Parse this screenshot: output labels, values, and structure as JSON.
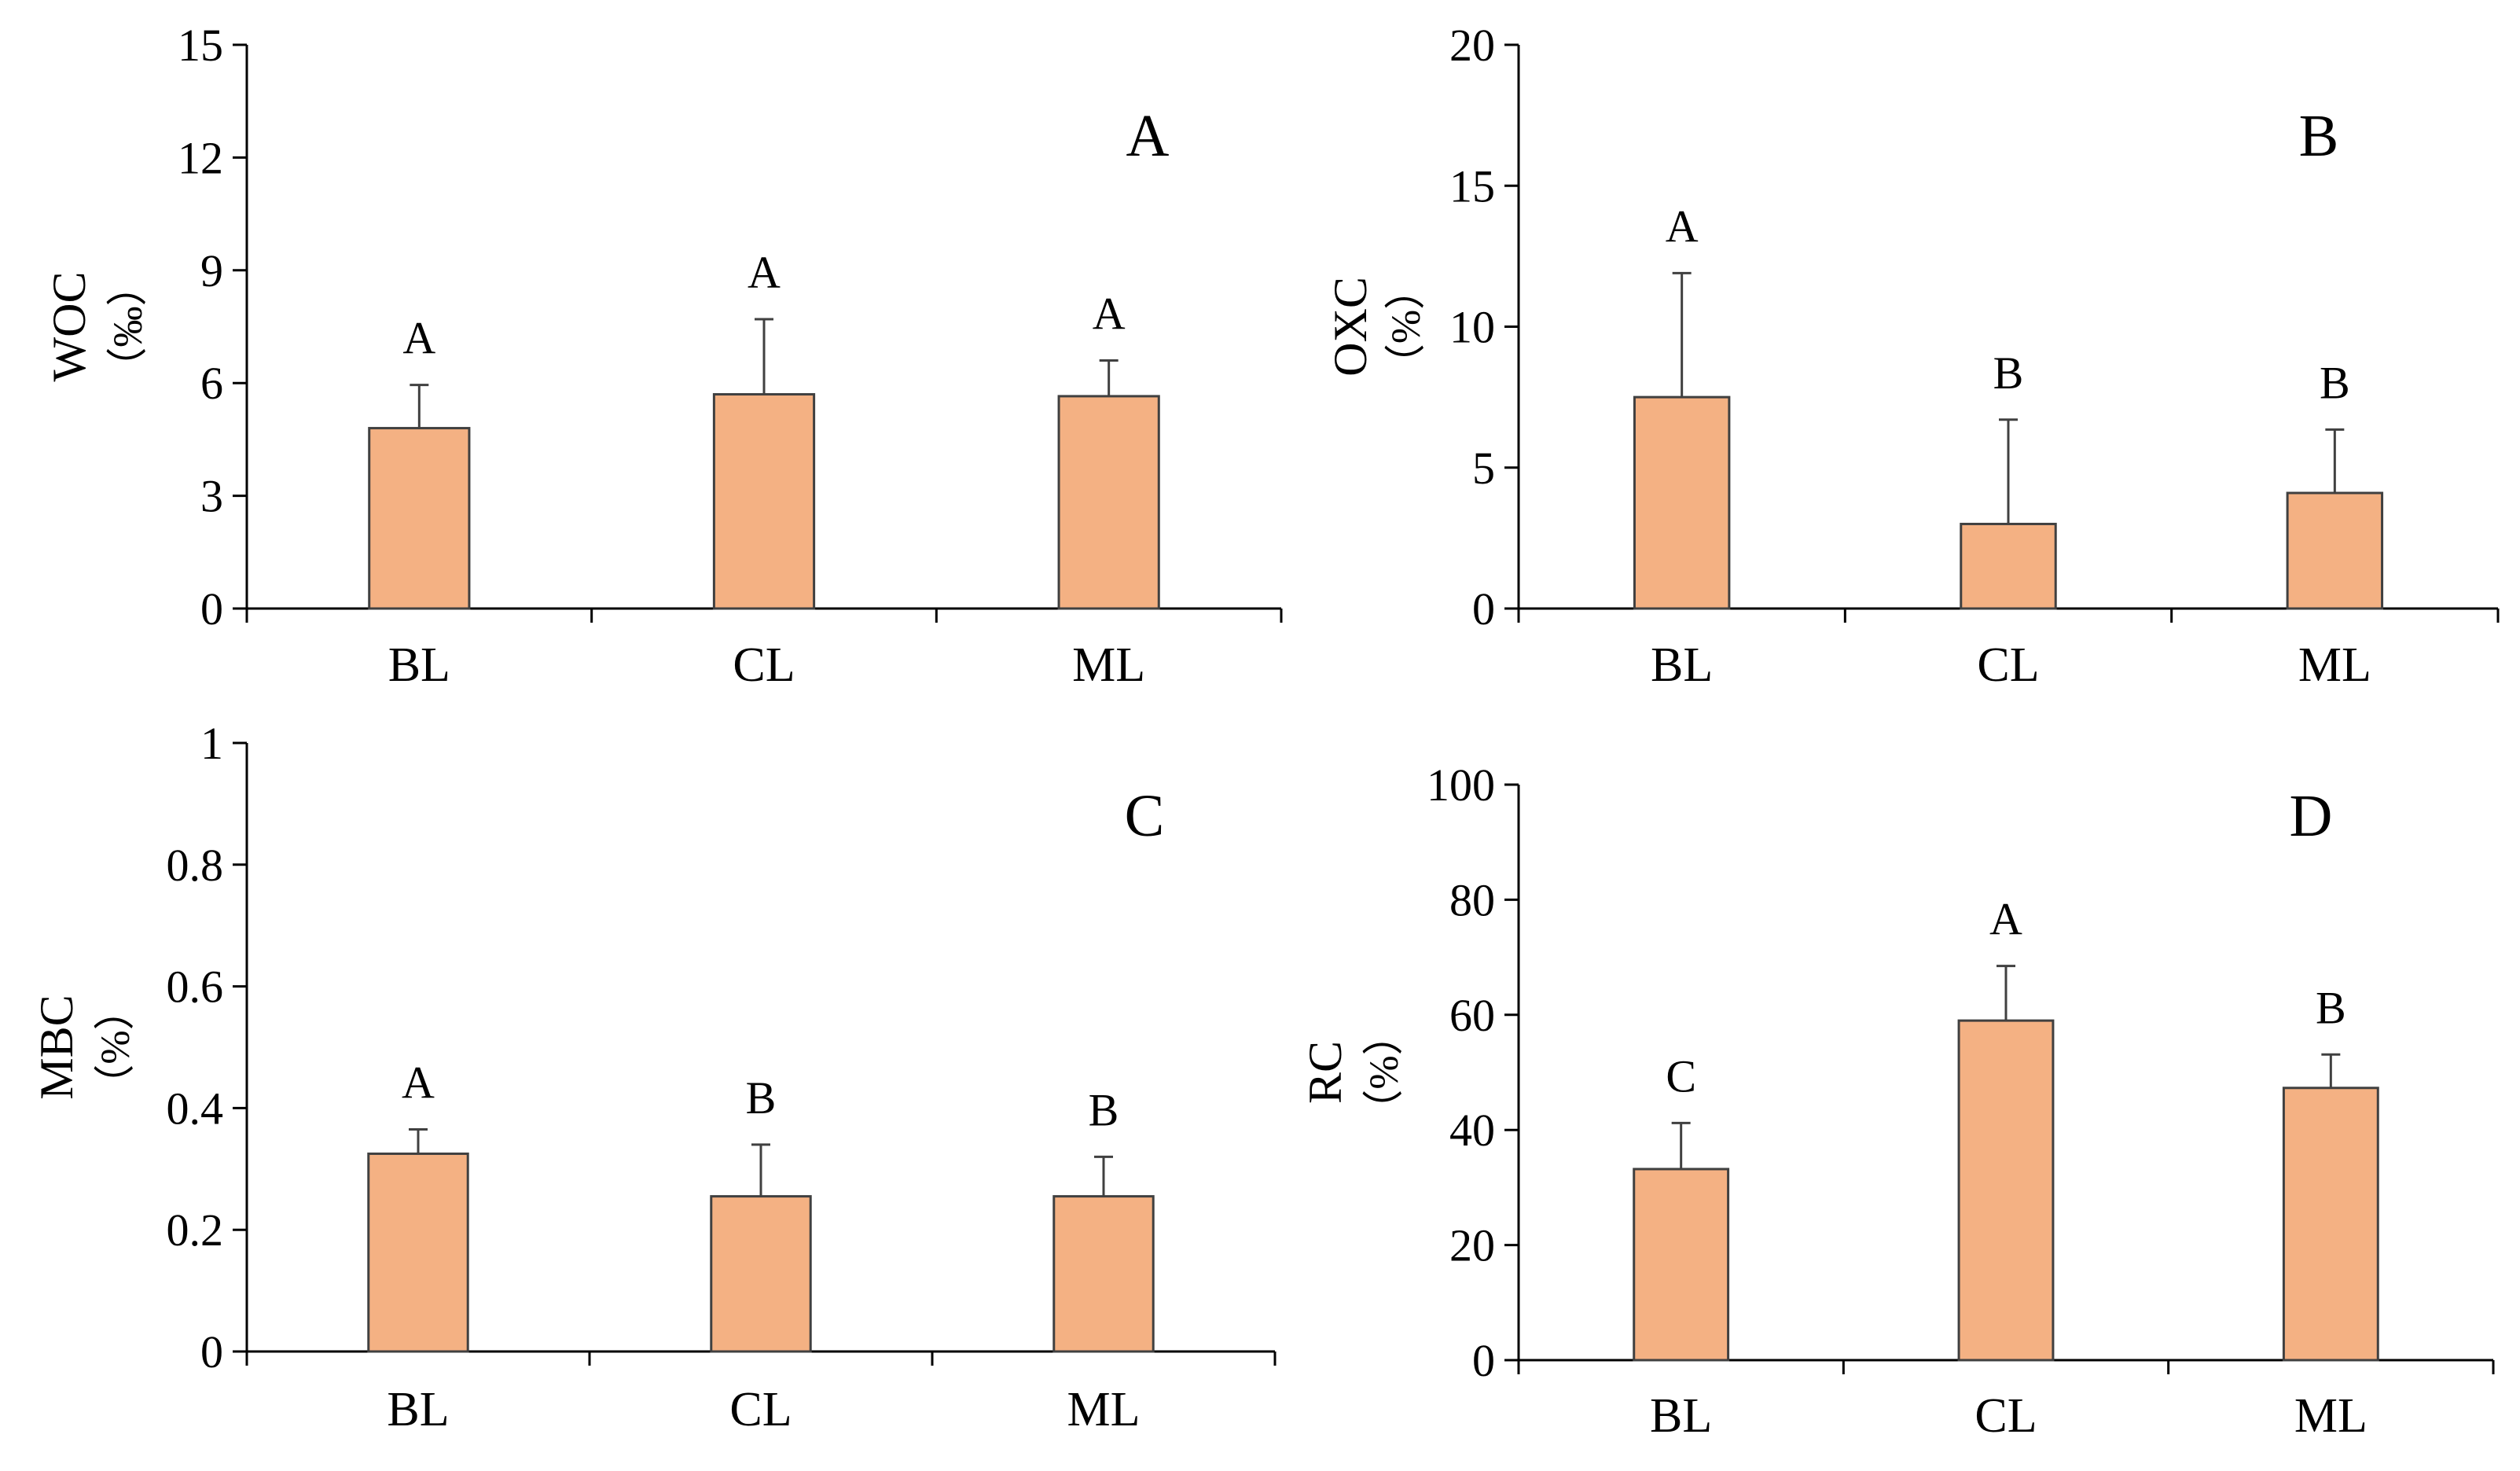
{
  "figure": {
    "background": "#ffffff"
  },
  "style": {
    "bar_fill": "#f4b183",
    "bar_stroke": "#404040",
    "axis_color": "#000000",
    "errbar_color": "#404040"
  },
  "chart_data": [
    {
      "type": "bar",
      "panel": "A",
      "ylabel": "WOC",
      "ylabel_unit": "（‰）",
      "categories": [
        "BL",
        "CL",
        "ML"
      ],
      "values": [
        4.8,
        5.7,
        5.65
      ],
      "errors": [
        1.15,
        2.0,
        0.95
      ],
      "significance": [
        "A",
        "A",
        "A"
      ],
      "ylim": [
        0,
        15
      ],
      "yticks": [
        0,
        3,
        6,
        9,
        12,
        15
      ],
      "ytick_labels": [
        "0",
        "3",
        "6",
        "9",
        "12",
        "15"
      ]
    },
    {
      "type": "bar",
      "panel": "B",
      "ylabel": "OXC",
      "ylabel_unit": "（%）",
      "categories": [
        "BL",
        "CL",
        "ML"
      ],
      "values": [
        7.5,
        3.0,
        4.1
      ],
      "errors": [
        4.4,
        3.7,
        2.25
      ],
      "significance": [
        "A",
        "B",
        "B"
      ],
      "ylim": [
        0,
        20
      ],
      "yticks": [
        0,
        5,
        10,
        15,
        20
      ],
      "ytick_labels": [
        "0",
        "5",
        "10",
        "15",
        "20"
      ]
    },
    {
      "type": "bar",
      "panel": "C",
      "ylabel": "MBC",
      "ylabel_unit": "（%）",
      "categories": [
        "BL",
        "CL",
        "ML"
      ],
      "values": [
        0.325,
        0.255,
        0.255
      ],
      "errors": [
        0.04,
        0.085,
        0.065
      ],
      "significance": [
        "A",
        "B",
        "B"
      ],
      "ylim": [
        0,
        1
      ],
      "yticks": [
        0,
        0.2,
        0.4,
        0.6,
        0.8,
        1
      ],
      "ytick_labels": [
        "0",
        "0.2",
        "0.4",
        "0.6",
        "0.8",
        "1"
      ]
    },
    {
      "type": "bar",
      "panel": "D",
      "ylabel": "RC",
      "ylabel_unit": "（%）",
      "categories": [
        "BL",
        "CL",
        "ML"
      ],
      "values": [
        33.2,
        59.0,
        47.3
      ],
      "errors": [
        8.0,
        9.5,
        5.8
      ],
      "significance": [
        "C",
        "A",
        "B"
      ],
      "ylim": [
        0,
        100
      ],
      "yticks": [
        0,
        20,
        40,
        60,
        80,
        100
      ],
      "ytick_labels": [
        "0",
        "20",
        "40",
        "60",
        "80",
        "100"
      ]
    }
  ]
}
